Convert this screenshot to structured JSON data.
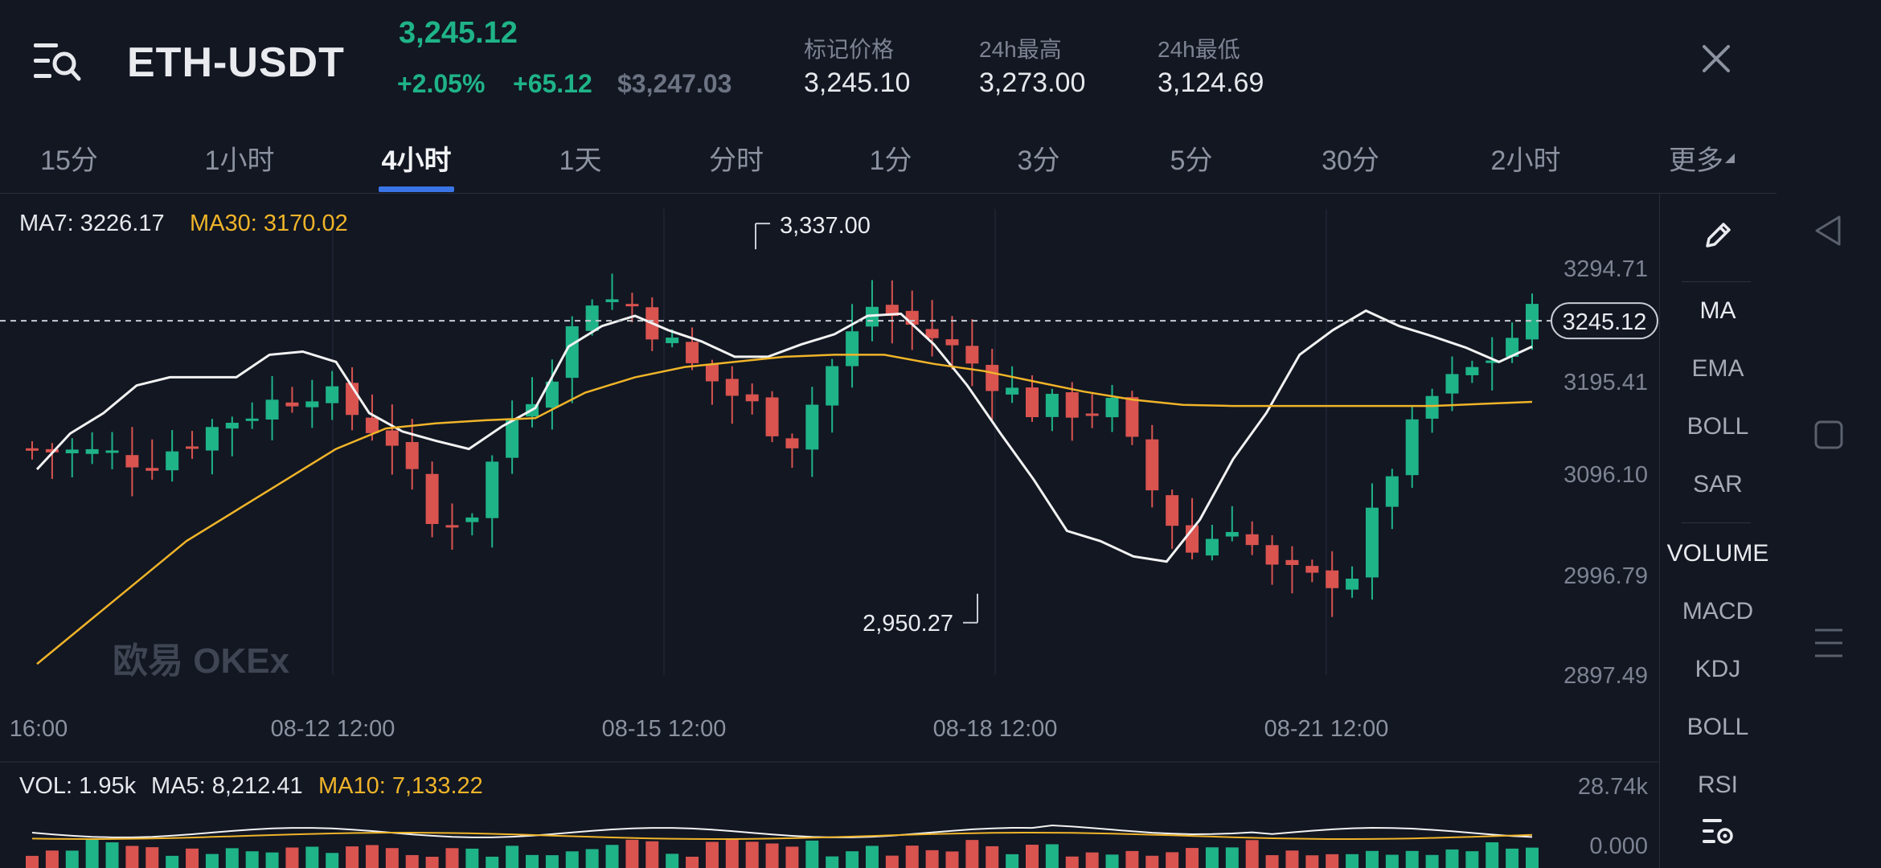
{
  "header": {
    "symbol": "ETH-USDT",
    "last_price": "3,245.12",
    "change_pct": "+2.05%",
    "change_abs": "+65.12",
    "usd_price": "$3,247.03",
    "stats": [
      {
        "label": "标记价格",
        "value": "3,245.10"
      },
      {
        "label": "24h最高",
        "value": "3,273.00"
      },
      {
        "label": "24h最低",
        "value": "3,124.69"
      }
    ]
  },
  "tabs": [
    "15分",
    "1小时",
    "4小时",
    "1天",
    "分时",
    "1分",
    "3分",
    "5分",
    "30分",
    "2小时",
    "更多"
  ],
  "active_tab": "4小时",
  "main_chart": {
    "ma_labels": {
      "ma7": "MA7: 3226.17",
      "ma30": "MA30: 3170.02"
    },
    "y_ticks": [
      "3294.71",
      "3195.41",
      "3096.10",
      "2996.79",
      "2897.49"
    ],
    "x_ticks": [
      "16:00",
      "08-12 12:00",
      "08-15 12:00",
      "08-18 12:00",
      "08-21 12:00"
    ],
    "current_price_tag": "3245.12",
    "high_marker": "3,337.00",
    "low_marker": "2,950.27",
    "watermark": "欧易 OKEx"
  },
  "volume_chart": {
    "label": "VOL: 1.95k",
    "ma5": "MA5: 8,212.41",
    "ma10": "MA10: 7,133.22",
    "y_ticks": [
      "28.74k",
      "0.000"
    ]
  },
  "indicators": [
    "MA",
    "EMA",
    "BOLL",
    "SAR",
    "VOLUME",
    "MACD",
    "KDJ",
    "BOLL",
    "RSI"
  ],
  "colors": {
    "up": "#1fb388",
    "down": "#d9534f",
    "ma7": "#f2f2f2",
    "ma30": "#f0b429",
    "accent": "#3a75e6"
  },
  "chart_data": {
    "type": "candlestick",
    "series": [
      {
        "name": "MA7",
        "values": [
          3100,
          3135,
          3155,
          3182,
          3190,
          3190,
          3190,
          3212,
          3215,
          3205,
          3155,
          3137,
          3128,
          3120,
          3142,
          3160,
          3220,
          3240,
          3250,
          3236,
          3225,
          3210,
          3210,
          3222,
          3232,
          3250,
          3252,
          3222,
          3182,
          3135,
          3090,
          3040,
          3030,
          3015,
          3010,
          3051,
          3110,
          3155,
          3212,
          3236,
          3255,
          3240,
          3230,
          3219,
          3205,
          3220
        ]
      },
      {
        "name": "MA30",
        "values": [
          2910,
          2950,
          2990,
          3030,
          3060,
          3090,
          3120,
          3140,
          3145,
          3148,
          3150,
          3175,
          3190,
          3200,
          3205,
          3210,
          3212,
          3212,
          3203,
          3196,
          3186,
          3176,
          3168,
          3163,
          3162,
          3162,
          3162,
          3162,
          3162,
          3164,
          3166
        ]
      }
    ]
  }
}
